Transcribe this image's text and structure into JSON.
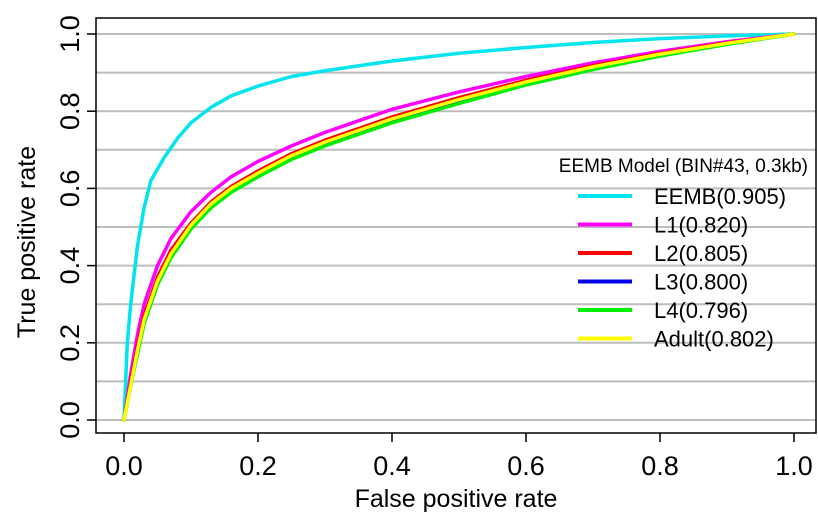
{
  "chart_data": {
    "type": "line",
    "title": "",
    "xlabel": "False positive rate",
    "ylabel": "True positive rate",
    "xlim": [
      0,
      1
    ],
    "ylim": [
      0,
      1
    ],
    "x_ticks": [
      "0.0",
      "0.2",
      "0.4",
      "0.6",
      "0.8",
      "1.0"
    ],
    "y_ticks": [
      "0.0",
      "0.2",
      "0.4",
      "0.6",
      "0.8",
      "1.0"
    ],
    "grid": "horizontal",
    "legend": {
      "title": "EEMB Model (BIN#43, 0.3kb)",
      "position": "right"
    },
    "series": [
      {
        "name": "EEMB(0.905)",
        "color": "#00e5ee",
        "points": [
          [
            0,
            0
          ],
          [
            0.005,
            0.2
          ],
          [
            0.01,
            0.3
          ],
          [
            0.02,
            0.45
          ],
          [
            0.03,
            0.55
          ],
          [
            0.04,
            0.62
          ],
          [
            0.06,
            0.68
          ],
          [
            0.08,
            0.73
          ],
          [
            0.1,
            0.77
          ],
          [
            0.13,
            0.81
          ],
          [
            0.16,
            0.84
          ],
          [
            0.2,
            0.865
          ],
          [
            0.25,
            0.89
          ],
          [
            0.3,
            0.905
          ],
          [
            0.4,
            0.93
          ],
          [
            0.5,
            0.95
          ],
          [
            0.6,
            0.965
          ],
          [
            0.7,
            0.978
          ],
          [
            0.8,
            0.988
          ],
          [
            0.9,
            0.995
          ],
          [
            1,
            1
          ]
        ]
      },
      {
        "name": "L1(0.820)",
        "color": "#ff00ff",
        "points": [
          [
            0,
            0
          ],
          [
            0.01,
            0.12
          ],
          [
            0.02,
            0.22
          ],
          [
            0.03,
            0.3
          ],
          [
            0.05,
            0.4
          ],
          [
            0.07,
            0.47
          ],
          [
            0.1,
            0.54
          ],
          [
            0.13,
            0.59
          ],
          [
            0.16,
            0.63
          ],
          [
            0.2,
            0.67
          ],
          [
            0.25,
            0.71
          ],
          [
            0.3,
            0.745
          ],
          [
            0.35,
            0.775
          ],
          [
            0.4,
            0.805
          ],
          [
            0.5,
            0.85
          ],
          [
            0.6,
            0.89
          ],
          [
            0.7,
            0.925
          ],
          [
            0.8,
            0.955
          ],
          [
            0.9,
            0.98
          ],
          [
            1,
            1
          ]
        ]
      },
      {
        "name": "L2(0.805)",
        "color": "#ff0000",
        "points": [
          [
            0,
            0
          ],
          [
            0.01,
            0.1
          ],
          [
            0.02,
            0.19
          ],
          [
            0.03,
            0.27
          ],
          [
            0.05,
            0.37
          ],
          [
            0.07,
            0.44
          ],
          [
            0.1,
            0.51
          ],
          [
            0.13,
            0.565
          ],
          [
            0.16,
            0.605
          ],
          [
            0.2,
            0.645
          ],
          [
            0.25,
            0.69
          ],
          [
            0.3,
            0.725
          ],
          [
            0.35,
            0.755
          ],
          [
            0.4,
            0.785
          ],
          [
            0.5,
            0.835
          ],
          [
            0.6,
            0.88
          ],
          [
            0.7,
            0.918
          ],
          [
            0.8,
            0.95
          ],
          [
            0.9,
            0.977
          ],
          [
            1,
            1
          ]
        ]
      },
      {
        "name": "L3(0.800)",
        "color": "#0000ee",
        "points": [
          [
            0,
            0
          ],
          [
            0.01,
            0.09
          ],
          [
            0.02,
            0.18
          ],
          [
            0.03,
            0.26
          ],
          [
            0.05,
            0.36
          ],
          [
            0.07,
            0.43
          ],
          [
            0.1,
            0.5
          ],
          [
            0.13,
            0.555
          ],
          [
            0.16,
            0.595
          ],
          [
            0.2,
            0.635
          ],
          [
            0.25,
            0.68
          ],
          [
            0.3,
            0.715
          ],
          [
            0.35,
            0.745
          ],
          [
            0.4,
            0.775
          ],
          [
            0.5,
            0.825
          ],
          [
            0.6,
            0.872
          ],
          [
            0.7,
            0.912
          ],
          [
            0.8,
            0.946
          ],
          [
            0.9,
            0.975
          ],
          [
            1,
            1
          ]
        ]
      },
      {
        "name": "L4(0.796)",
        "color": "#00ee00",
        "points": [
          [
            0,
            0
          ],
          [
            0.01,
            0.09
          ],
          [
            0.02,
            0.17
          ],
          [
            0.03,
            0.25
          ],
          [
            0.05,
            0.35
          ],
          [
            0.07,
            0.42
          ],
          [
            0.1,
            0.495
          ],
          [
            0.13,
            0.55
          ],
          [
            0.16,
            0.59
          ],
          [
            0.2,
            0.63
          ],
          [
            0.25,
            0.675
          ],
          [
            0.3,
            0.71
          ],
          [
            0.35,
            0.74
          ],
          [
            0.4,
            0.77
          ],
          [
            0.5,
            0.82
          ],
          [
            0.6,
            0.868
          ],
          [
            0.7,
            0.908
          ],
          [
            0.8,
            0.943
          ],
          [
            0.9,
            0.973
          ],
          [
            1,
            1
          ]
        ]
      },
      {
        "name": "Adult(0.802)",
        "color": "#ffff00",
        "points": [
          [
            0,
            0
          ],
          [
            0.01,
            0.09
          ],
          [
            0.02,
            0.18
          ],
          [
            0.03,
            0.26
          ],
          [
            0.05,
            0.36
          ],
          [
            0.07,
            0.43
          ],
          [
            0.1,
            0.505
          ],
          [
            0.13,
            0.56
          ],
          [
            0.16,
            0.6
          ],
          [
            0.2,
            0.64
          ],
          [
            0.25,
            0.685
          ],
          [
            0.3,
            0.72
          ],
          [
            0.35,
            0.75
          ],
          [
            0.4,
            0.78
          ],
          [
            0.5,
            0.83
          ],
          [
            0.6,
            0.876
          ],
          [
            0.7,
            0.915
          ],
          [
            0.8,
            0.948
          ],
          [
            0.9,
            0.976
          ],
          [
            1,
            1
          ]
        ]
      }
    ]
  }
}
